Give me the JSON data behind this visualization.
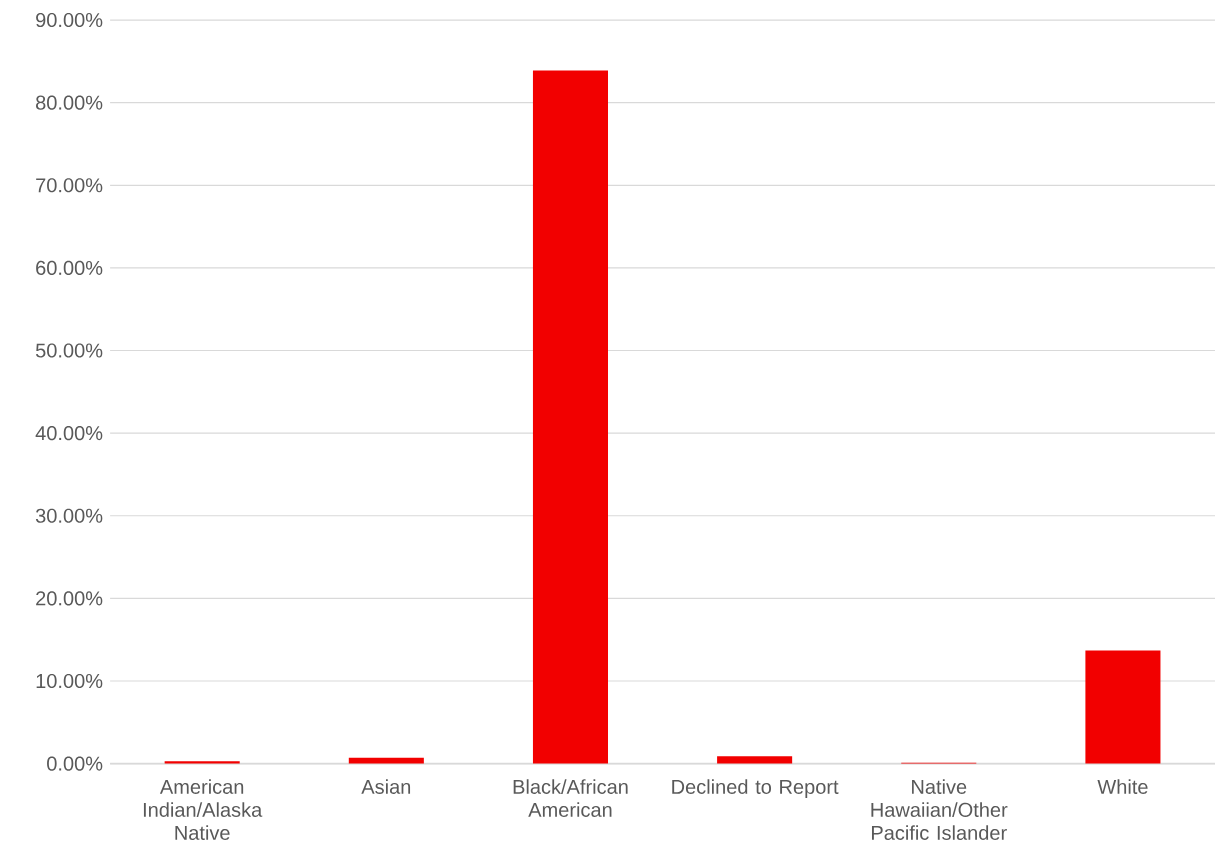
{
  "chart_data": {
    "type": "bar",
    "categories": [
      "American Indian/Alaska Native",
      "Asian",
      "Black/African American",
      "Declined to Report",
      "Native Hawaiian/Other Pacific Islander",
      "White"
    ],
    "values": [
      0.3,
      0.7,
      83.9,
      0.9,
      0.1,
      13.7
    ],
    "color": "#f20000",
    "ylim": [
      0,
      90
    ],
    "yticks": [
      {
        "value": 0,
        "label": "0.00%"
      },
      {
        "value": 10,
        "label": "10.00%"
      },
      {
        "value": 20,
        "label": "20.00%"
      },
      {
        "value": 30,
        "label": "30.00%"
      },
      {
        "value": 40,
        "label": "40.00%"
      },
      {
        "value": 50,
        "label": "50.00%"
      },
      {
        "value": 60,
        "label": "60.00%"
      },
      {
        "value": 70,
        "label": "70.00%"
      },
      {
        "value": 80,
        "label": "80.00%"
      },
      {
        "value": 90,
        "label": "90.00%"
      }
    ],
    "grid": "y"
  }
}
